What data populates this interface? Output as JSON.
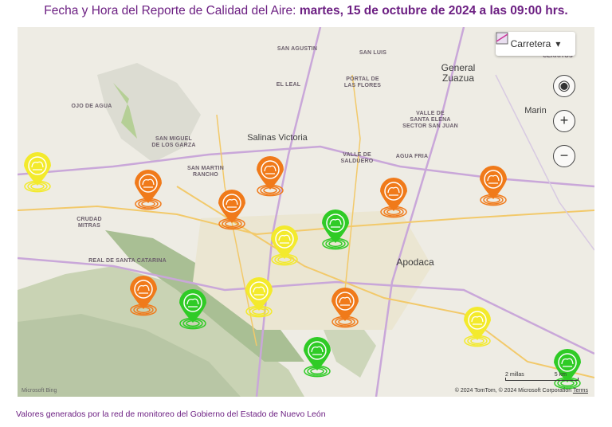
{
  "header": {
    "label": "Fecha y Hora del Reporte de Calidad del Aire:",
    "datetime": "martes, 15 de octubre de 2024 a las 09:00 hrs."
  },
  "map": {
    "style_selector": "Carretera",
    "places": [
      "SAN AGUSTIN",
      "SAN LUIS",
      "General",
      "Zuazua",
      "CERRITOS",
      "EL LEAL",
      "PORTAL DE",
      "LAS FLORES",
      "OJO DE AGUA",
      "VALLE DE",
      "SANTA ELENA",
      "SECTOR SAN JUAN",
      "Marin",
      "SAN MIGUEL",
      "DE LOS GARZA",
      "Salinas Victoria",
      "VALLE DE",
      "SALDUERO",
      "AGUA FRIA",
      "SAN MARTIN",
      "RANCHO",
      "CRUDAD",
      "MITRAS",
      "REAL DE SANTA CATARINA",
      "Apodaca"
    ],
    "scale": [
      "2 millas",
      "5 km"
    ],
    "attribution": "© 2024 TomTom, © 2024 Microsoft Corporation",
    "terms": "Terms",
    "logo": "Microsoft Bing"
  },
  "footer": "Valores generados por la red de monitoreo del Gobierno del Estado de Nuevo León"
}
